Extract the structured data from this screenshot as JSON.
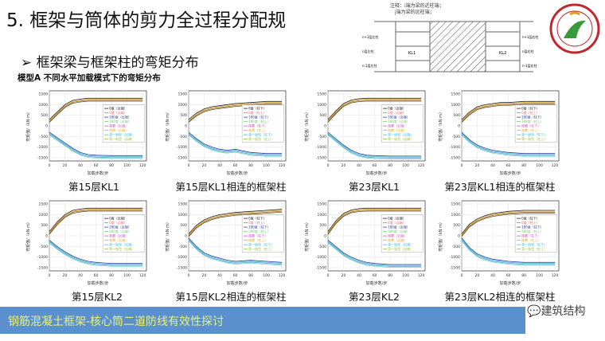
{
  "title": "5.  框架与筒体的剪力全过程分配规",
  "subtitle": "➢ 框架梁与框架柱的弯矩分布",
  "model_label": "模型A  不同水平加载模式下的弯矩分布",
  "diagram": {
    "note1": "注释：i端为梁的近柱端；",
    "note2": "j端为梁的远柱端；",
    "labels": [
      "n+1层左柱",
      "n层左柱",
      "n-1层左柱",
      "n+1层右柱",
      "n层右柱",
      "n-1层右柱",
      "柱顶",
      "柱脚",
      "KL1",
      "KL2",
      "i端",
      "j端"
    ]
  },
  "logo_text": "广州大学",
  "footer": {
    "text": "钢筋混凝土框架-核心筒二道防线有效性探讨",
    "watermark": "建筑结构"
  },
  "axis": {
    "xlabel": "加载步数/步",
    "ylabel": "弯矩值/（kN·m）",
    "xticks": [
      0,
      20,
      40,
      60,
      80,
      100,
      120
    ],
    "yticks": [
      1500,
      1000,
      500,
      0,
      -500,
      -1000,
      -1500
    ]
  },
  "legend_beam": [
    "0度（近端）",
    "0度（远端）",
    "180度（近端）",
    "180度（远端）",
    "推覆（近端）",
    "推覆（远端）",
    "第一振型（近端）",
    "第一振型（远端）"
  ],
  "legend_col": [
    "0度（柱下）",
    "0度（柱上）",
    "180度（柱下）",
    "180度（柱上）",
    "推覆（柱下）",
    "推覆（柱上）",
    "第一振型（柱下）",
    "第一振型（柱上）"
  ],
  "colors": [
    "#222222",
    "#e07070",
    "#3040a0",
    "#70d070",
    "#c060c0",
    "#e0b040",
    "#40c0e0",
    "#a0c040"
  ],
  "chart_data": [
    {
      "type": "line",
      "caption": "第15层KL1",
      "kind": "beam",
      "x": [
        0,
        10,
        20,
        30,
        40,
        50,
        60,
        80,
        100,
        120
      ],
      "upper": [
        300,
        650,
        1000,
        1200,
        1260,
        1300,
        1300,
        1300,
        1300,
        1300
      ],
      "lower": [
        -300,
        -550,
        -800,
        -1050,
        -1250,
        -1350,
        -1380,
        -1400,
        -1400,
        -1400
      ]
    },
    {
      "type": "line",
      "caption": "第15层KL1相连的框架柱",
      "kind": "col",
      "x": [
        0,
        10,
        20,
        30,
        40,
        50,
        60,
        80,
        100,
        120
      ],
      "upper": [
        300,
        600,
        800,
        900,
        950,
        1000,
        1050,
        1100,
        1150,
        1150
      ],
      "lower": [
        -300,
        -600,
        -850,
        -1000,
        -1100,
        -1150,
        -1100,
        -1250,
        -1300,
        -1300
      ]
    },
    {
      "type": "line",
      "caption": "第23层KL1",
      "kind": "beam",
      "x": [
        0,
        10,
        20,
        30,
        40,
        50,
        60,
        80,
        100,
        120
      ],
      "upper": [
        300,
        700,
        1050,
        1220,
        1280,
        1300,
        1300,
        1300,
        1300,
        1300
      ],
      "lower": [
        -300,
        -600,
        -900,
        -1150,
        -1300,
        -1380,
        -1400,
        -1420,
        -1420,
        -1420
      ]
    },
    {
      "type": "line",
      "caption": "第23层KL1相连的框架柱",
      "kind": "col",
      "x": [
        0,
        10,
        20,
        30,
        40,
        50,
        60,
        80,
        100,
        120
      ],
      "upper": [
        300,
        650,
        900,
        1000,
        1050,
        1100,
        1100,
        1150,
        1150,
        1150
      ],
      "lower": [
        -300,
        -650,
        -900,
        -1050,
        -1150,
        -1200,
        -1250,
        -1300,
        -1300,
        -1300
      ]
    },
    {
      "type": "line",
      "caption": "第15层KL2",
      "kind": "beam",
      "x": [
        0,
        10,
        20,
        30,
        40,
        50,
        60,
        80,
        100,
        120
      ],
      "upper": [
        200,
        650,
        1000,
        1200,
        1260,
        1300,
        1300,
        1300,
        1300,
        1300
      ],
      "lower": [
        -200,
        -500,
        -750,
        -950,
        -1100,
        -1200,
        -1250,
        -1300,
        -1300,
        -1300
      ]
    },
    {
      "type": "line",
      "caption": "第15层KL2相连的框架柱",
      "kind": "col",
      "x": [
        0,
        10,
        20,
        30,
        40,
        50,
        60,
        80,
        100,
        120
      ],
      "upper": [
        100,
        500,
        750,
        900,
        1000,
        1050,
        1100,
        1150,
        1200,
        1250
      ],
      "lower": [
        -100,
        -500,
        -800,
        -950,
        -1050,
        -1150,
        -1200,
        -1150,
        -1200,
        -1250
      ]
    },
    {
      "type": "line",
      "caption": "第23层KL2",
      "kind": "beam",
      "x": [
        0,
        10,
        20,
        30,
        40,
        50,
        60,
        80,
        100,
        120
      ],
      "upper": [
        200,
        700,
        1050,
        1220,
        1280,
        1300,
        1300,
        1300,
        1300,
        1300
      ],
      "lower": [
        -200,
        -500,
        -800,
        -1000,
        -1150,
        -1250,
        -1300,
        -1350,
        -1350,
        -1350
      ]
    },
    {
      "type": "line",
      "caption": "第23层KL2相连的框架柱",
      "kind": "col",
      "x": [
        0,
        10,
        20,
        30,
        40,
        50,
        60,
        80,
        100,
        120
      ],
      "upper": [
        100,
        550,
        800,
        950,
        1050,
        1100,
        1150,
        1200,
        1200,
        1200
      ],
      "lower": [
        -100,
        -550,
        -850,
        -1000,
        -1100,
        -1150,
        -1200,
        -1250,
        -1250,
        -1250
      ]
    }
  ]
}
